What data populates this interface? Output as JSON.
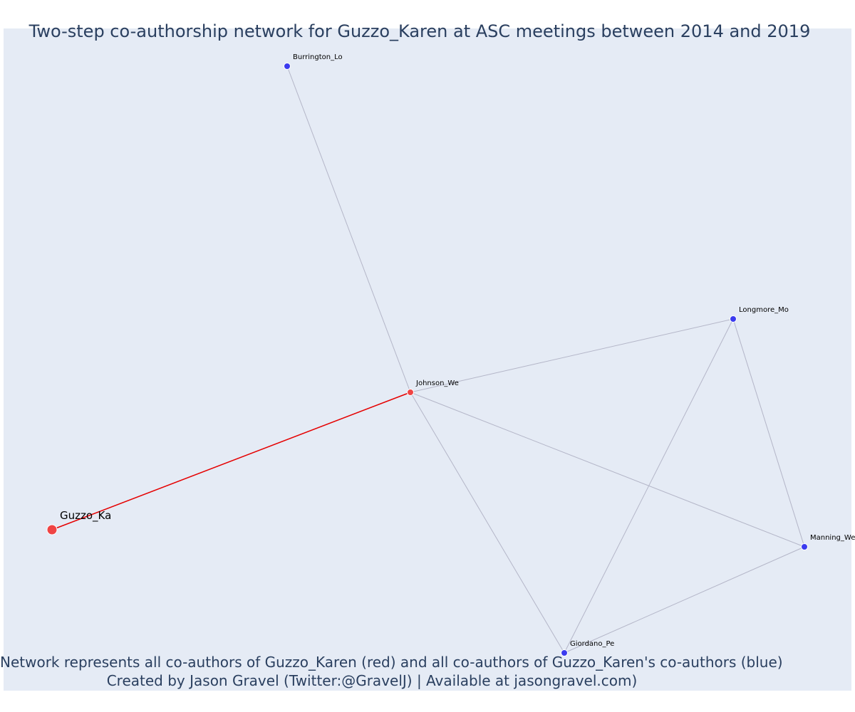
{
  "title": "Two-step co-authorship network for Guzzo_Karen at ASC meetings between 2014 and 2019",
  "footer": {
    "line1": "Network represents all co-authors of Guzzo_Karen (red) and all co-authors of Guzzo_Karen's co-authors (blue)",
    "line2": "Created by Jason Gravel (Twitter:@GravelJ) | Available at jasongravel.com)"
  },
  "colors": {
    "plot_background": "#e5ebf5",
    "ego_node": "#ef4444",
    "alter_node": "#3b3bef",
    "ego_edge": "#e50000",
    "other_edge": "#b4b6c8",
    "text": "#2a3f5f"
  },
  "nodes": [
    {
      "id": "Guzzo_Ka",
      "label": "Guzzo_Ka",
      "group": "red",
      "emphasis": "large"
    },
    {
      "id": "Johnson_We",
      "label": "Johnson_We",
      "group": "red"
    },
    {
      "id": "Burrington_Lo",
      "label": "Burrington_Lo",
      "group": "blue"
    },
    {
      "id": "Longmore_Mo",
      "label": "Longmore_Mo",
      "group": "blue"
    },
    {
      "id": "Manning_We",
      "label": "Manning_We",
      "group": "blue"
    },
    {
      "id": "Giordano_Pe",
      "label": "Giordano_Pe",
      "group": "blue"
    }
  ],
  "edges": [
    {
      "from": "Guzzo_Ka",
      "to": "Johnson_We",
      "ego": true
    },
    {
      "from": "Johnson_We",
      "to": "Burrington_Lo",
      "ego": false
    },
    {
      "from": "Johnson_We",
      "to": "Longmore_Mo",
      "ego": false
    },
    {
      "from": "Johnson_We",
      "to": "Manning_We",
      "ego": false
    },
    {
      "from": "Johnson_We",
      "to": "Giordano_Pe",
      "ego": false
    },
    {
      "from": "Longmore_Mo",
      "to": "Manning_We",
      "ego": false
    },
    {
      "from": "Longmore_Mo",
      "to": "Giordano_Pe",
      "ego": false
    },
    {
      "from": "Giordano_Pe",
      "to": "Manning_We",
      "ego": false
    }
  ]
}
